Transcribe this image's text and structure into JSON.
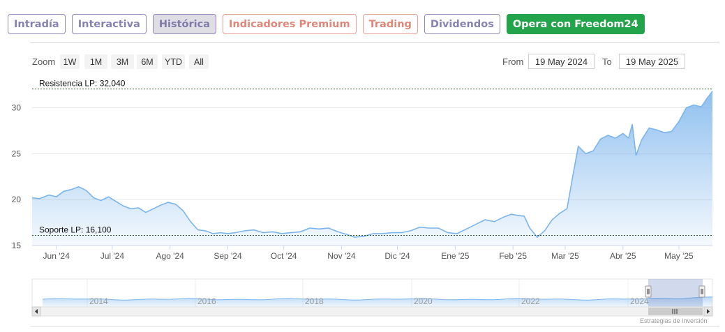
{
  "tabs": [
    {
      "label": "Intradía",
      "style": "purple"
    },
    {
      "label": "Interactiva",
      "style": "purple"
    },
    {
      "label": "Histórica",
      "style": "active"
    },
    {
      "label": "Indicadores Premium",
      "style": "salmon"
    },
    {
      "label": "Trading",
      "style": "salmon"
    },
    {
      "label": "Dividendos",
      "style": "purple"
    },
    {
      "label": "Opera con Freedom24",
      "style": "green"
    }
  ],
  "zoom": {
    "label": "Zoom",
    "buttons": [
      "1W",
      "1M",
      "3M",
      "6M",
      "YTD",
      "All"
    ]
  },
  "range": {
    "from_label": "From",
    "from_value": "19 May 2024",
    "to_label": "To",
    "to_value": "19 May 2025"
  },
  "chart_data": {
    "type": "area",
    "ylim": [
      15,
      33
    ],
    "y_ticks": [
      15,
      20,
      25,
      30
    ],
    "x_ticks": [
      {
        "label": "Jun '24",
        "date": "2024-06-01"
      },
      {
        "label": "Jul '24",
        "date": "2024-07-01"
      },
      {
        "label": "Ago '24",
        "date": "2024-08-01"
      },
      {
        "label": "Sep '24",
        "date": "2024-09-01"
      },
      {
        "label": "Oct '24",
        "date": "2024-10-01"
      },
      {
        "label": "Nov '24",
        "date": "2024-11-01"
      },
      {
        "label": "Dic '24",
        "date": "2024-12-01"
      },
      {
        "label": "Ene '25",
        "date": "2025-01-01"
      },
      {
        "label": "Feb '25",
        "date": "2025-02-01"
      },
      {
        "label": "Mar '25",
        "date": "2025-03-01"
      },
      {
        "label": "Abr '25",
        "date": "2025-04-01"
      },
      {
        "label": "May '25",
        "date": "2025-05-01"
      }
    ],
    "x_range": [
      "2024-05-19",
      "2025-05-19"
    ],
    "series": [
      {
        "color": "#7cb5ec",
        "points": [
          [
            "2024-05-19",
            20.2
          ],
          [
            "2024-05-23",
            20.1
          ],
          [
            "2024-05-28",
            20.5
          ],
          [
            "2024-06-01",
            20.3
          ],
          [
            "2024-06-05",
            20.9
          ],
          [
            "2024-06-09",
            21.1
          ],
          [
            "2024-06-13",
            21.4
          ],
          [
            "2024-06-17",
            21.0
          ],
          [
            "2024-06-21",
            20.2
          ],
          [
            "2024-06-25",
            19.9
          ],
          [
            "2024-06-29",
            20.3
          ],
          [
            "2024-07-03",
            19.8
          ],
          [
            "2024-07-07",
            19.3
          ],
          [
            "2024-07-11",
            19.0
          ],
          [
            "2024-07-15",
            19.1
          ],
          [
            "2024-07-19",
            18.6
          ],
          [
            "2024-07-23",
            19.0
          ],
          [
            "2024-07-27",
            19.4
          ],
          [
            "2024-07-31",
            19.7
          ],
          [
            "2024-08-04",
            19.5
          ],
          [
            "2024-08-08",
            18.8
          ],
          [
            "2024-08-12",
            17.6
          ],
          [
            "2024-08-16",
            16.7
          ],
          [
            "2024-08-20",
            16.6
          ],
          [
            "2024-08-24",
            16.3
          ],
          [
            "2024-08-28",
            16.4
          ],
          [
            "2024-09-01",
            16.3
          ],
          [
            "2024-09-05",
            16.4
          ],
          [
            "2024-09-10",
            16.6
          ],
          [
            "2024-09-15",
            16.7
          ],
          [
            "2024-09-20",
            16.4
          ],
          [
            "2024-09-25",
            16.5
          ],
          [
            "2024-09-30",
            16.3
          ],
          [
            "2024-10-05",
            16.4
          ],
          [
            "2024-10-10",
            16.5
          ],
          [
            "2024-10-15",
            16.9
          ],
          [
            "2024-10-20",
            16.8
          ],
          [
            "2024-10-25",
            16.9
          ],
          [
            "2024-10-30",
            16.5
          ],
          [
            "2024-11-04",
            16.2
          ],
          [
            "2024-11-08",
            15.9
          ],
          [
            "2024-11-13",
            16.0
          ],
          [
            "2024-11-18",
            16.3
          ],
          [
            "2024-11-23",
            16.3
          ],
          [
            "2024-11-28",
            16.4
          ],
          [
            "2024-12-03",
            16.4
          ],
          [
            "2024-12-08",
            16.6
          ],
          [
            "2024-12-13",
            17.0
          ],
          [
            "2024-12-18",
            16.9
          ],
          [
            "2024-12-23",
            16.9
          ],
          [
            "2024-12-28",
            16.4
          ],
          [
            "2025-01-02",
            16.3
          ],
          [
            "2025-01-07",
            16.8
          ],
          [
            "2025-01-12",
            17.3
          ],
          [
            "2025-01-17",
            17.8
          ],
          [
            "2025-01-22",
            17.6
          ],
          [
            "2025-01-27",
            18.1
          ],
          [
            "2025-01-31",
            18.4
          ],
          [
            "2025-02-03",
            18.3
          ],
          [
            "2025-02-07",
            18.2
          ],
          [
            "2025-02-10",
            16.9
          ],
          [
            "2025-02-14",
            15.9
          ],
          [
            "2025-02-18",
            16.6
          ],
          [
            "2025-02-22",
            17.8
          ],
          [
            "2025-02-26",
            18.5
          ],
          [
            "2025-03-02",
            19.0
          ],
          [
            "2025-03-05",
            22.5
          ],
          [
            "2025-03-08",
            25.8
          ],
          [
            "2025-03-12",
            25.0
          ],
          [
            "2025-03-16",
            25.3
          ],
          [
            "2025-03-20",
            26.6
          ],
          [
            "2025-03-24",
            27.0
          ],
          [
            "2025-03-28",
            26.7
          ],
          [
            "2025-04-01",
            27.2
          ],
          [
            "2025-04-04",
            26.7
          ],
          [
            "2025-04-06",
            28.2
          ],
          [
            "2025-04-08",
            24.8
          ],
          [
            "2025-04-11",
            26.5
          ],
          [
            "2025-04-15",
            27.8
          ],
          [
            "2025-04-19",
            27.6
          ],
          [
            "2025-04-23",
            27.3
          ],
          [
            "2025-04-27",
            27.4
          ],
          [
            "2025-05-01",
            28.5
          ],
          [
            "2025-05-05",
            30.0
          ],
          [
            "2025-05-09",
            30.3
          ],
          [
            "2025-05-13",
            30.1
          ],
          [
            "2025-05-16",
            31.0
          ],
          [
            "2025-05-19",
            31.8
          ]
        ]
      }
    ],
    "annotations": [
      {
        "label": "Resistencia LP: 32,040",
        "value": 32.04
      },
      {
        "label": "Soporte LP: 16,100",
        "value": 16.1
      }
    ],
    "navigator": {
      "x_labels": [
        "2014",
        "2016",
        "2018",
        "2020",
        "2022",
        "2024"
      ]
    },
    "credit": "Estrategias de Inversión"
  }
}
